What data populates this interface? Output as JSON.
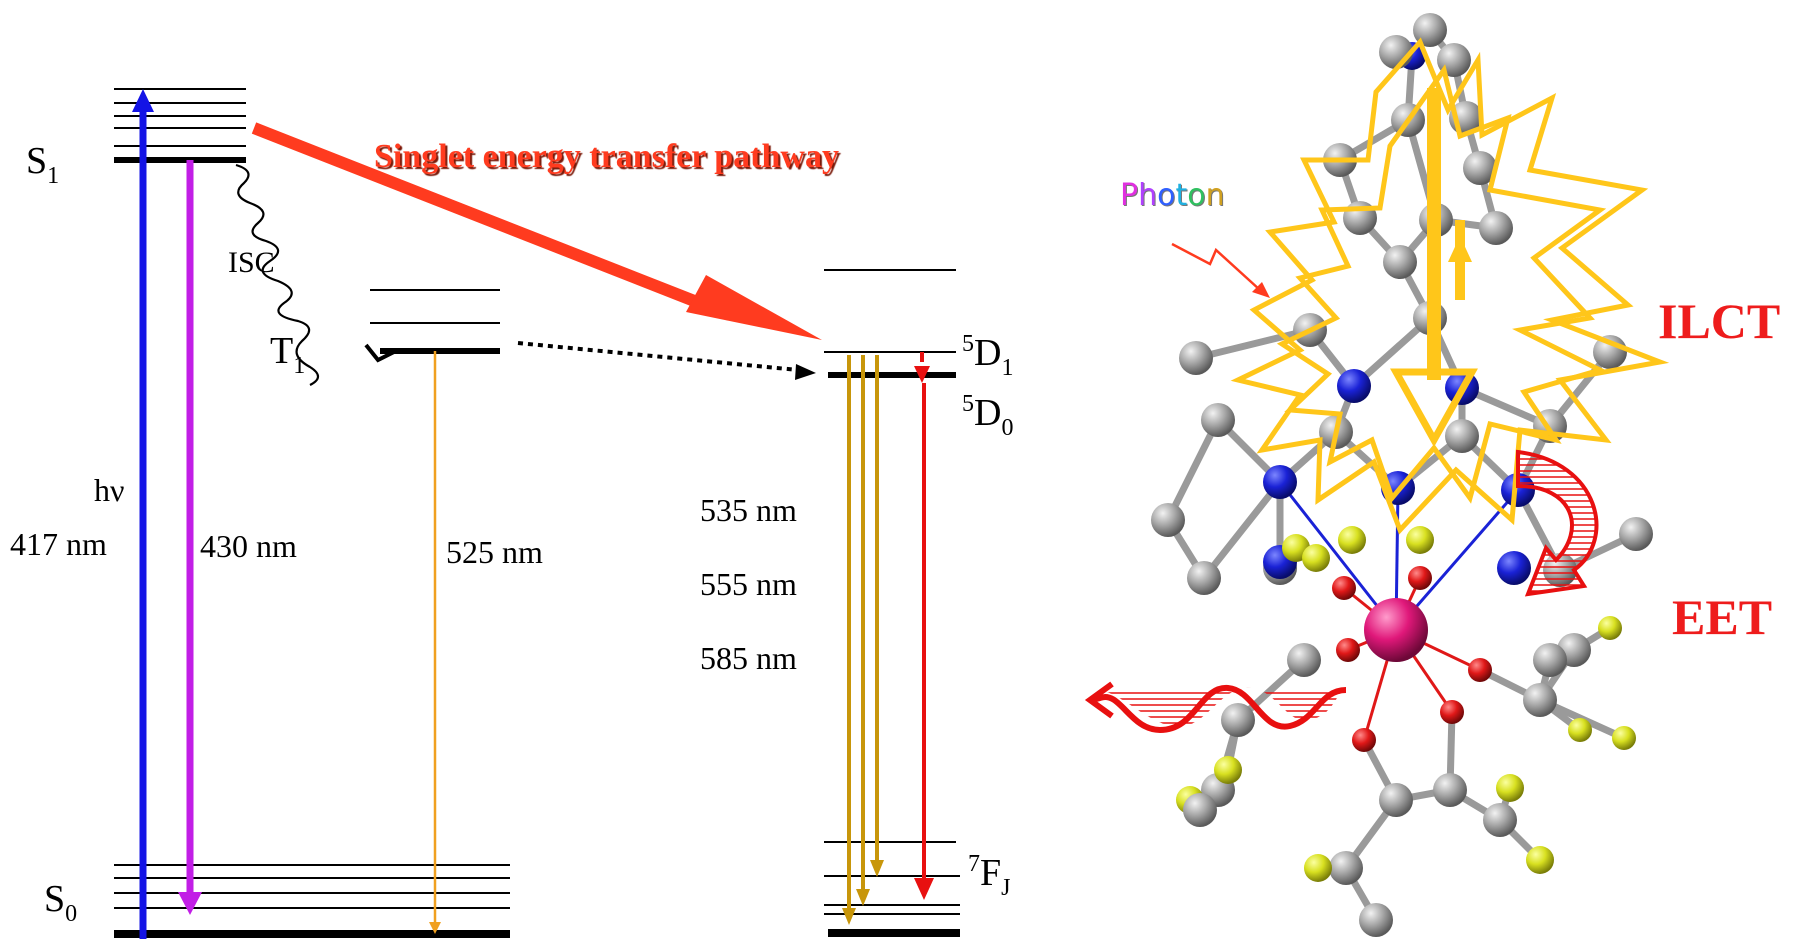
{
  "diagram": {
    "levels": {
      "s1": "S",
      "s1_sub": "1",
      "s0": "S",
      "s0_sub": "0",
      "t1": "T",
      "t1_sub": "1",
      "d1": "D",
      "d1_sup": "5",
      "d1_sub": "1",
      "d0": "D",
      "d0_sup": "5",
      "d0_sub": "0",
      "fj": "F",
      "fj_sup": "7",
      "fj_sub": "J"
    },
    "labels": {
      "isc": "ISC",
      "hv": "hν",
      "excitation_wavelength": "417 nm",
      "fluorescence_wavelength": "430 nm",
      "phosphorescence_wavelength": "525 nm",
      "em1": "535 nm",
      "em2": "555 nm",
      "em3": "585 nm",
      "singlet_pathway": "Singlet energy transfer pathway"
    },
    "molecule_labels": {
      "photon": "Photon",
      "ilct": "ILCT",
      "eet": "EET"
    },
    "colors": {
      "excitation": "#1414e6",
      "fluorescence": "#c21ee6",
      "phosphorescence": "#f0a020",
      "singlet_transfer": "#ff3b1f",
      "eu_emission_gold": "#c8960a",
      "eu_emission_red": "#e81010",
      "ilct_star": "#ffc61a",
      "carbon": "#9a9a9a",
      "nitrogen": "#1a22d6",
      "oxygen": "#e01818",
      "fluorine": "#d8e020",
      "europium": "#e0187a"
    }
  }
}
